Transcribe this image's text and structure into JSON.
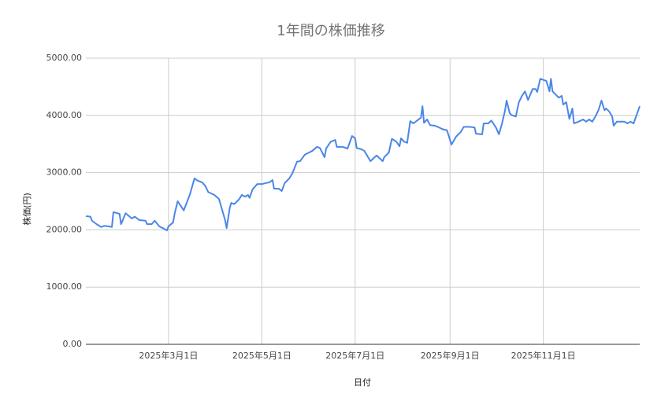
{
  "chart_data": {
    "type": "line",
    "title": "1年間の株価推移",
    "x_label": "日付",
    "y_label": "株価(円)",
    "xlim": [
      "2025-01-06",
      "2026-01-03"
    ],
    "xticks": [
      {
        "value": "2025-03-01",
        "label": "2025年3月1日"
      },
      {
        "value": "2025-05-01",
        "label": "2025年5月1日"
      },
      {
        "value": "2025-07-01",
        "label": "2025年7月1日"
      },
      {
        "value": "2025-09-01",
        "label": "2025年9月1日"
      },
      {
        "value": "2025-11-01",
        "label": "2025年11月1日"
      }
    ],
    "ylim": [
      0,
      5000
    ],
    "yticks": [
      {
        "value": 0,
        "label": "0.00"
      },
      {
        "value": 1000,
        "label": "1000.00"
      },
      {
        "value": 2000,
        "label": "2000.00"
      },
      {
        "value": 3000,
        "label": "3000.00"
      },
      {
        "value": 4000,
        "label": "4000.00"
      },
      {
        "value": 5000,
        "label": "5000.00"
      }
    ],
    "grid": true,
    "x": [
      "2025-01-06",
      "2025-01-09",
      "2025-01-10",
      "2025-01-13",
      "2025-01-16",
      "2025-01-18",
      "2025-01-21",
      "2025-01-23",
      "2025-01-24",
      "2025-01-28",
      "2025-01-29",
      "2025-02-01",
      "2025-02-05",
      "2025-02-07",
      "2025-02-10",
      "2025-02-14",
      "2025-02-15",
      "2025-02-18",
      "2025-02-20",
      "2025-02-23",
      "2025-02-26",
      "2025-02-28",
      "2025-03-01",
      "2025-03-04",
      "2025-03-05",
      "2025-03-07",
      "2025-03-11",
      "2025-03-15",
      "2025-03-18",
      "2025-03-20",
      "2025-03-23",
      "2025-03-25",
      "2025-03-27",
      "2025-03-31",
      "2025-04-03",
      "2025-04-07",
      "2025-04-08",
      "2025-04-10",
      "2025-04-11",
      "2025-04-13",
      "2025-04-16",
      "2025-04-18",
      "2025-04-20",
      "2025-04-22",
      "2025-04-23",
      "2025-04-25",
      "2025-04-28",
      "2025-05-01",
      "2025-05-04",
      "2025-05-06",
      "2025-05-08",
      "2025-05-09",
      "2025-05-12",
      "2025-05-14",
      "2025-05-16",
      "2025-05-19",
      "2025-05-21",
      "2025-05-24",
      "2025-05-26",
      "2025-05-29",
      "2025-05-31",
      "2025-06-03",
      "2025-06-06",
      "2025-06-08",
      "2025-06-11",
      "2025-06-12",
      "2025-06-15",
      "2025-06-18",
      "2025-06-19",
      "2025-06-23",
      "2025-06-26",
      "2025-06-29",
      "2025-07-01",
      "2025-07-02",
      "2025-07-05",
      "2025-07-07",
      "2025-07-11",
      "2025-07-15",
      "2025-07-19",
      "2025-07-20",
      "2025-07-23",
      "2025-07-25",
      "2025-07-28",
      "2025-07-30",
      "2025-07-31",
      "2025-08-02",
      "2025-08-04",
      "2025-08-06",
      "2025-08-08",
      "2025-08-13",
      "2025-08-14",
      "2025-08-15",
      "2025-08-17",
      "2025-08-19",
      "2025-08-22",
      "2025-08-24",
      "2025-08-27",
      "2025-08-30",
      "2025-09-02",
      "2025-09-05",
      "2025-09-08",
      "2025-09-10",
      "2025-09-14",
      "2025-09-17",
      "2025-09-18",
      "2025-09-22",
      "2025-09-23",
      "2025-09-26",
      "2025-09-28",
      "2025-10-01",
      "2025-10-03",
      "2025-10-05",
      "2025-10-07",
      "2025-10-08",
      "2025-10-10",
      "2025-10-11",
      "2025-10-14",
      "2025-10-16",
      "2025-10-18",
      "2025-10-20",
      "2025-10-22",
      "2025-10-25",
      "2025-10-27",
      "2025-10-28",
      "2025-10-30",
      "2025-11-03",
      "2025-11-05",
      "2025-11-06",
      "2025-11-07",
      "2025-11-11",
      "2025-11-13",
      "2025-11-14",
      "2025-11-16",
      "2025-11-18",
      "2025-11-20",
      "2025-11-21",
      "2025-11-24",
      "2025-11-27",
      "2025-11-29",
      "2025-12-01",
      "2025-12-03",
      "2025-12-05",
      "2025-12-07",
      "2025-12-09",
      "2025-12-11",
      "2025-12-12",
      "2025-12-14",
      "2025-12-16",
      "2025-12-17",
      "2025-12-19",
      "2025-12-24",
      "2025-12-26",
      "2025-12-28",
      "2025-12-30",
      "2026-01-01",
      "2026-01-03"
    ],
    "series": [
      {
        "name": "株価",
        "color": "#4a86e8",
        "values": [
          2240,
          2230,
          2160,
          2100,
          2050,
          2070,
          2060,
          2050,
          2310,
          2280,
          2100,
          2290,
          2200,
          2230,
          2170,
          2160,
          2100,
          2100,
          2160,
          2060,
          2020,
          1990,
          2060,
          2130,
          2280,
          2500,
          2340,
          2620,
          2900,
          2860,
          2830,
          2770,
          2660,
          2610,
          2540,
          2170,
          2030,
          2380,
          2470,
          2450,
          2530,
          2610,
          2580,
          2610,
          2560,
          2710,
          2800,
          2800,
          2820,
          2830,
          2870,
          2720,
          2720,
          2680,
          2820,
          2900,
          2990,
          3190,
          3200,
          3310,
          3340,
          3380,
          3450,
          3430,
          3270,
          3420,
          3540,
          3570,
          3450,
          3450,
          3420,
          3640,
          3600,
          3430,
          3410,
          3380,
          3200,
          3300,
          3200,
          3270,
          3350,
          3590,
          3540,
          3460,
          3600,
          3540,
          3520,
          3900,
          3860,
          3960,
          4160,
          3870,
          3930,
          3830,
          3820,
          3800,
          3760,
          3740,
          3490,
          3630,
          3710,
          3800,
          3800,
          3790,
          3680,
          3670,
          3860,
          3860,
          3910,
          3790,
          3670,
          3860,
          4090,
          4260,
          4040,
          4010,
          3980,
          4230,
          4340,
          4420,
          4270,
          4460,
          4460,
          4410,
          4640,
          4600,
          4420,
          4640,
          4420,
          4310,
          4340,
          4190,
          4230,
          3940,
          4120,
          3860,
          3890,
          3930,
          3890,
          3930,
          3890,
          3980,
          4090,
          4260,
          4090,
          4120,
          4070,
          3980,
          3820,
          3890,
          3890,
          3860,
          3890,
          3860,
          4010,
          4160
        ]
      }
    ]
  }
}
